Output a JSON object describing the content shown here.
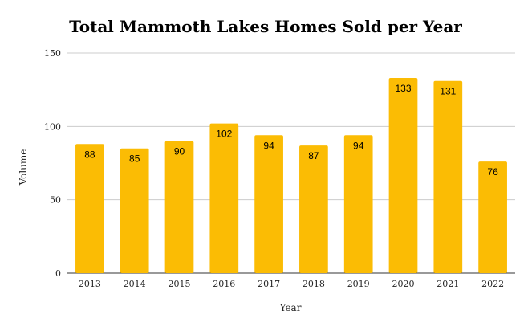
{
  "chart_data": {
    "type": "bar",
    "title": "Total Mammoth Lakes Homes Sold per Year",
    "xlabel": "Year",
    "ylabel": "Volume",
    "categories": [
      "2013",
      "2014",
      "2015",
      "2016",
      "2017",
      "2018",
      "2019",
      "2020",
      "2021",
      "2022"
    ],
    "values": [
      88,
      85,
      90,
      102,
      94,
      87,
      94,
      133,
      131,
      76
    ],
    "ylim": [
      0,
      150
    ],
    "yticks": [
      0,
      50,
      100,
      150
    ],
    "grid": true,
    "legend": "none",
    "bar_color": "#FBBC04"
  }
}
